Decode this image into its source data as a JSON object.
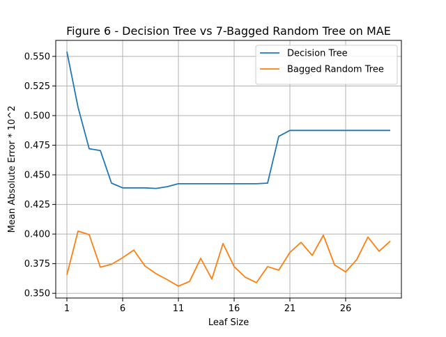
{
  "chart_data": {
    "type": "line",
    "title": "Figure 6 - Decision Tree vs 7-Bagged Random Tree on MAE",
    "xlabel": "Leaf Size",
    "ylabel": "Mean Absolute Error * 10^2",
    "xlim": [
      0,
      31
    ],
    "ylim": [
      0.346,
      0.5635
    ],
    "xticks": [
      1,
      6,
      11,
      16,
      21,
      26
    ],
    "yticks": [
      0.35,
      0.375,
      0.4,
      0.425,
      0.45,
      0.475,
      0.5,
      0.525,
      0.55
    ],
    "ytick_labels": [
      "0.350",
      "0.375",
      "0.400",
      "0.425",
      "0.450",
      "0.475",
      "0.500",
      "0.525",
      "0.550"
    ],
    "grid": true,
    "legend_position": "top-right",
    "x": [
      1,
      2,
      3,
      4,
      5,
      6,
      7,
      8,
      9,
      10,
      11,
      12,
      13,
      14,
      15,
      16,
      17,
      18,
      19,
      20,
      21,
      22,
      23,
      24,
      25,
      26,
      27,
      28,
      29,
      30
    ],
    "series": [
      {
        "name": "Decision Tree",
        "color": "#1f77b4",
        "values": [
          0.554,
          0.507,
          0.472,
          0.4705,
          0.443,
          0.439,
          0.439,
          0.439,
          0.4385,
          0.44,
          0.4425,
          0.4425,
          0.4425,
          0.4425,
          0.4425,
          0.4425,
          0.4425,
          0.4425,
          0.443,
          0.4825,
          0.4875,
          0.4875,
          0.4875,
          0.4875,
          0.4875,
          0.4875,
          0.4875,
          0.4875,
          0.4875,
          0.4875
        ]
      },
      {
        "name": "Bagged Random Tree",
        "color": "#ff7f0e",
        "values": [
          0.3655,
          0.4025,
          0.3995,
          0.372,
          0.3745,
          0.38,
          0.3865,
          0.373,
          0.3665,
          0.3615,
          0.356,
          0.36,
          0.3795,
          0.362,
          0.392,
          0.3725,
          0.3635,
          0.359,
          0.3725,
          0.3695,
          0.3845,
          0.393,
          0.382,
          0.399,
          0.374,
          0.368,
          0.3785,
          0.3975,
          0.3855,
          0.394
        ]
      }
    ]
  }
}
